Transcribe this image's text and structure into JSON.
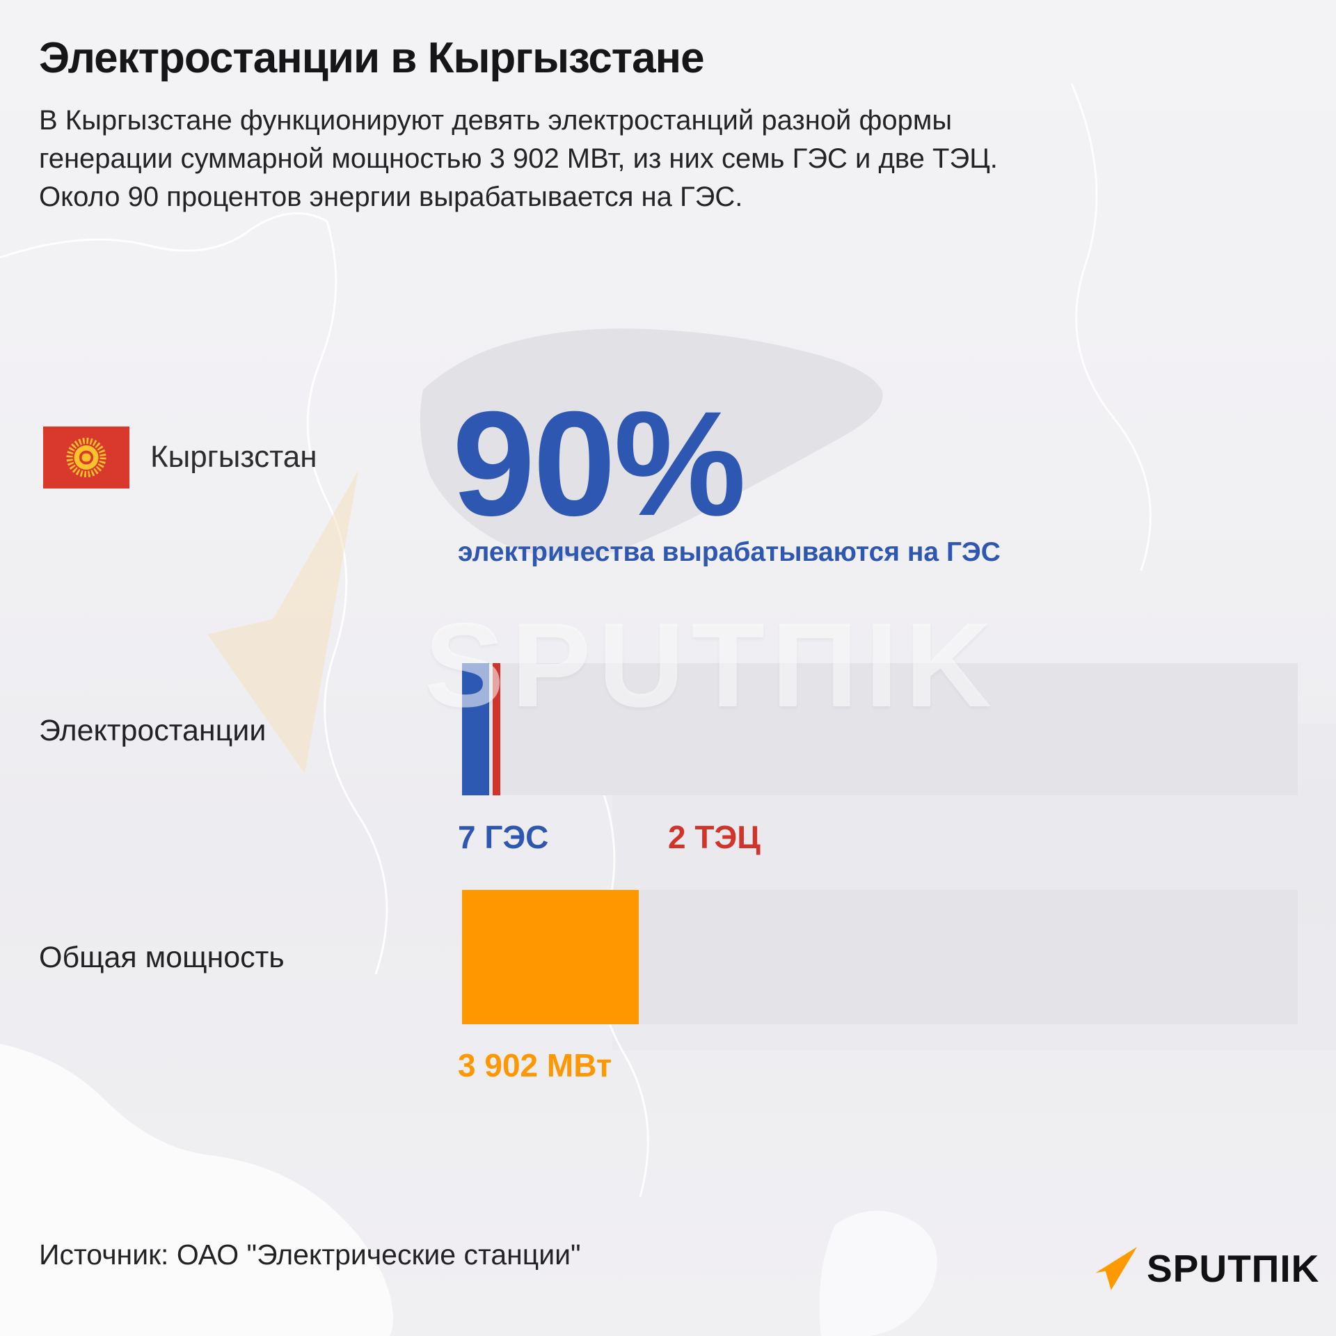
{
  "page": {
    "title": "Электростанции в Кыргызстане"
  },
  "intro": {
    "lines": [
      "В Кыргызстане функционируют девять электростанций разной формы",
      "генерации суммарной мощностью 3 902 МВт, из них семь ГЭС и две ТЭЦ.",
      "Около 90 процентов энергии вырабатывается на ГЭС."
    ]
  },
  "country": {
    "label": "Кыргызстан"
  },
  "highlight": {
    "value": "90%",
    "caption": "электричества вырабатываются на ГЭС"
  },
  "watermark": {
    "brand": "SPUTΠIK"
  },
  "chart_data": [
    {
      "type": "bar",
      "row_label": "Электростанции",
      "categories": [
        "ГЭС",
        "ТЭЦ"
      ],
      "series": [
        {
          "name": "ГЭС",
          "label": "7 ГЭС",
          "value": 7,
          "color": "#2d59b3"
        },
        {
          "name": "ТЭЦ",
          "label": "2 ТЭЦ",
          "value": 2,
          "color": "#d0352c"
        }
      ],
      "unit": "количество станций",
      "track_color": "#e4e3e7",
      "legend_position": "below-bars"
    },
    {
      "type": "bar",
      "row_label": "Общая мощность",
      "categories": [
        "Общая мощность"
      ],
      "series": [
        {
          "name": "Общая мощность",
          "label": "3 902 МВт",
          "value": 3902,
          "color": "#ff9800"
        }
      ],
      "unit": "МВт",
      "track_color": "#e4e3e7",
      "legend_position": "below-bars"
    }
  ],
  "footer": {
    "source": "Источник: ОАО \"Электрические станции\"",
    "logo_text": "SPUTΠIK"
  },
  "colors": {
    "accent_blue": "#2d57b0",
    "accent_red": "#d0352c",
    "accent_orange": "#ff9800",
    "flag_red": "#d9392d",
    "flag_sun": "#fdc32b",
    "track_gray": "#e4e3e7"
  }
}
